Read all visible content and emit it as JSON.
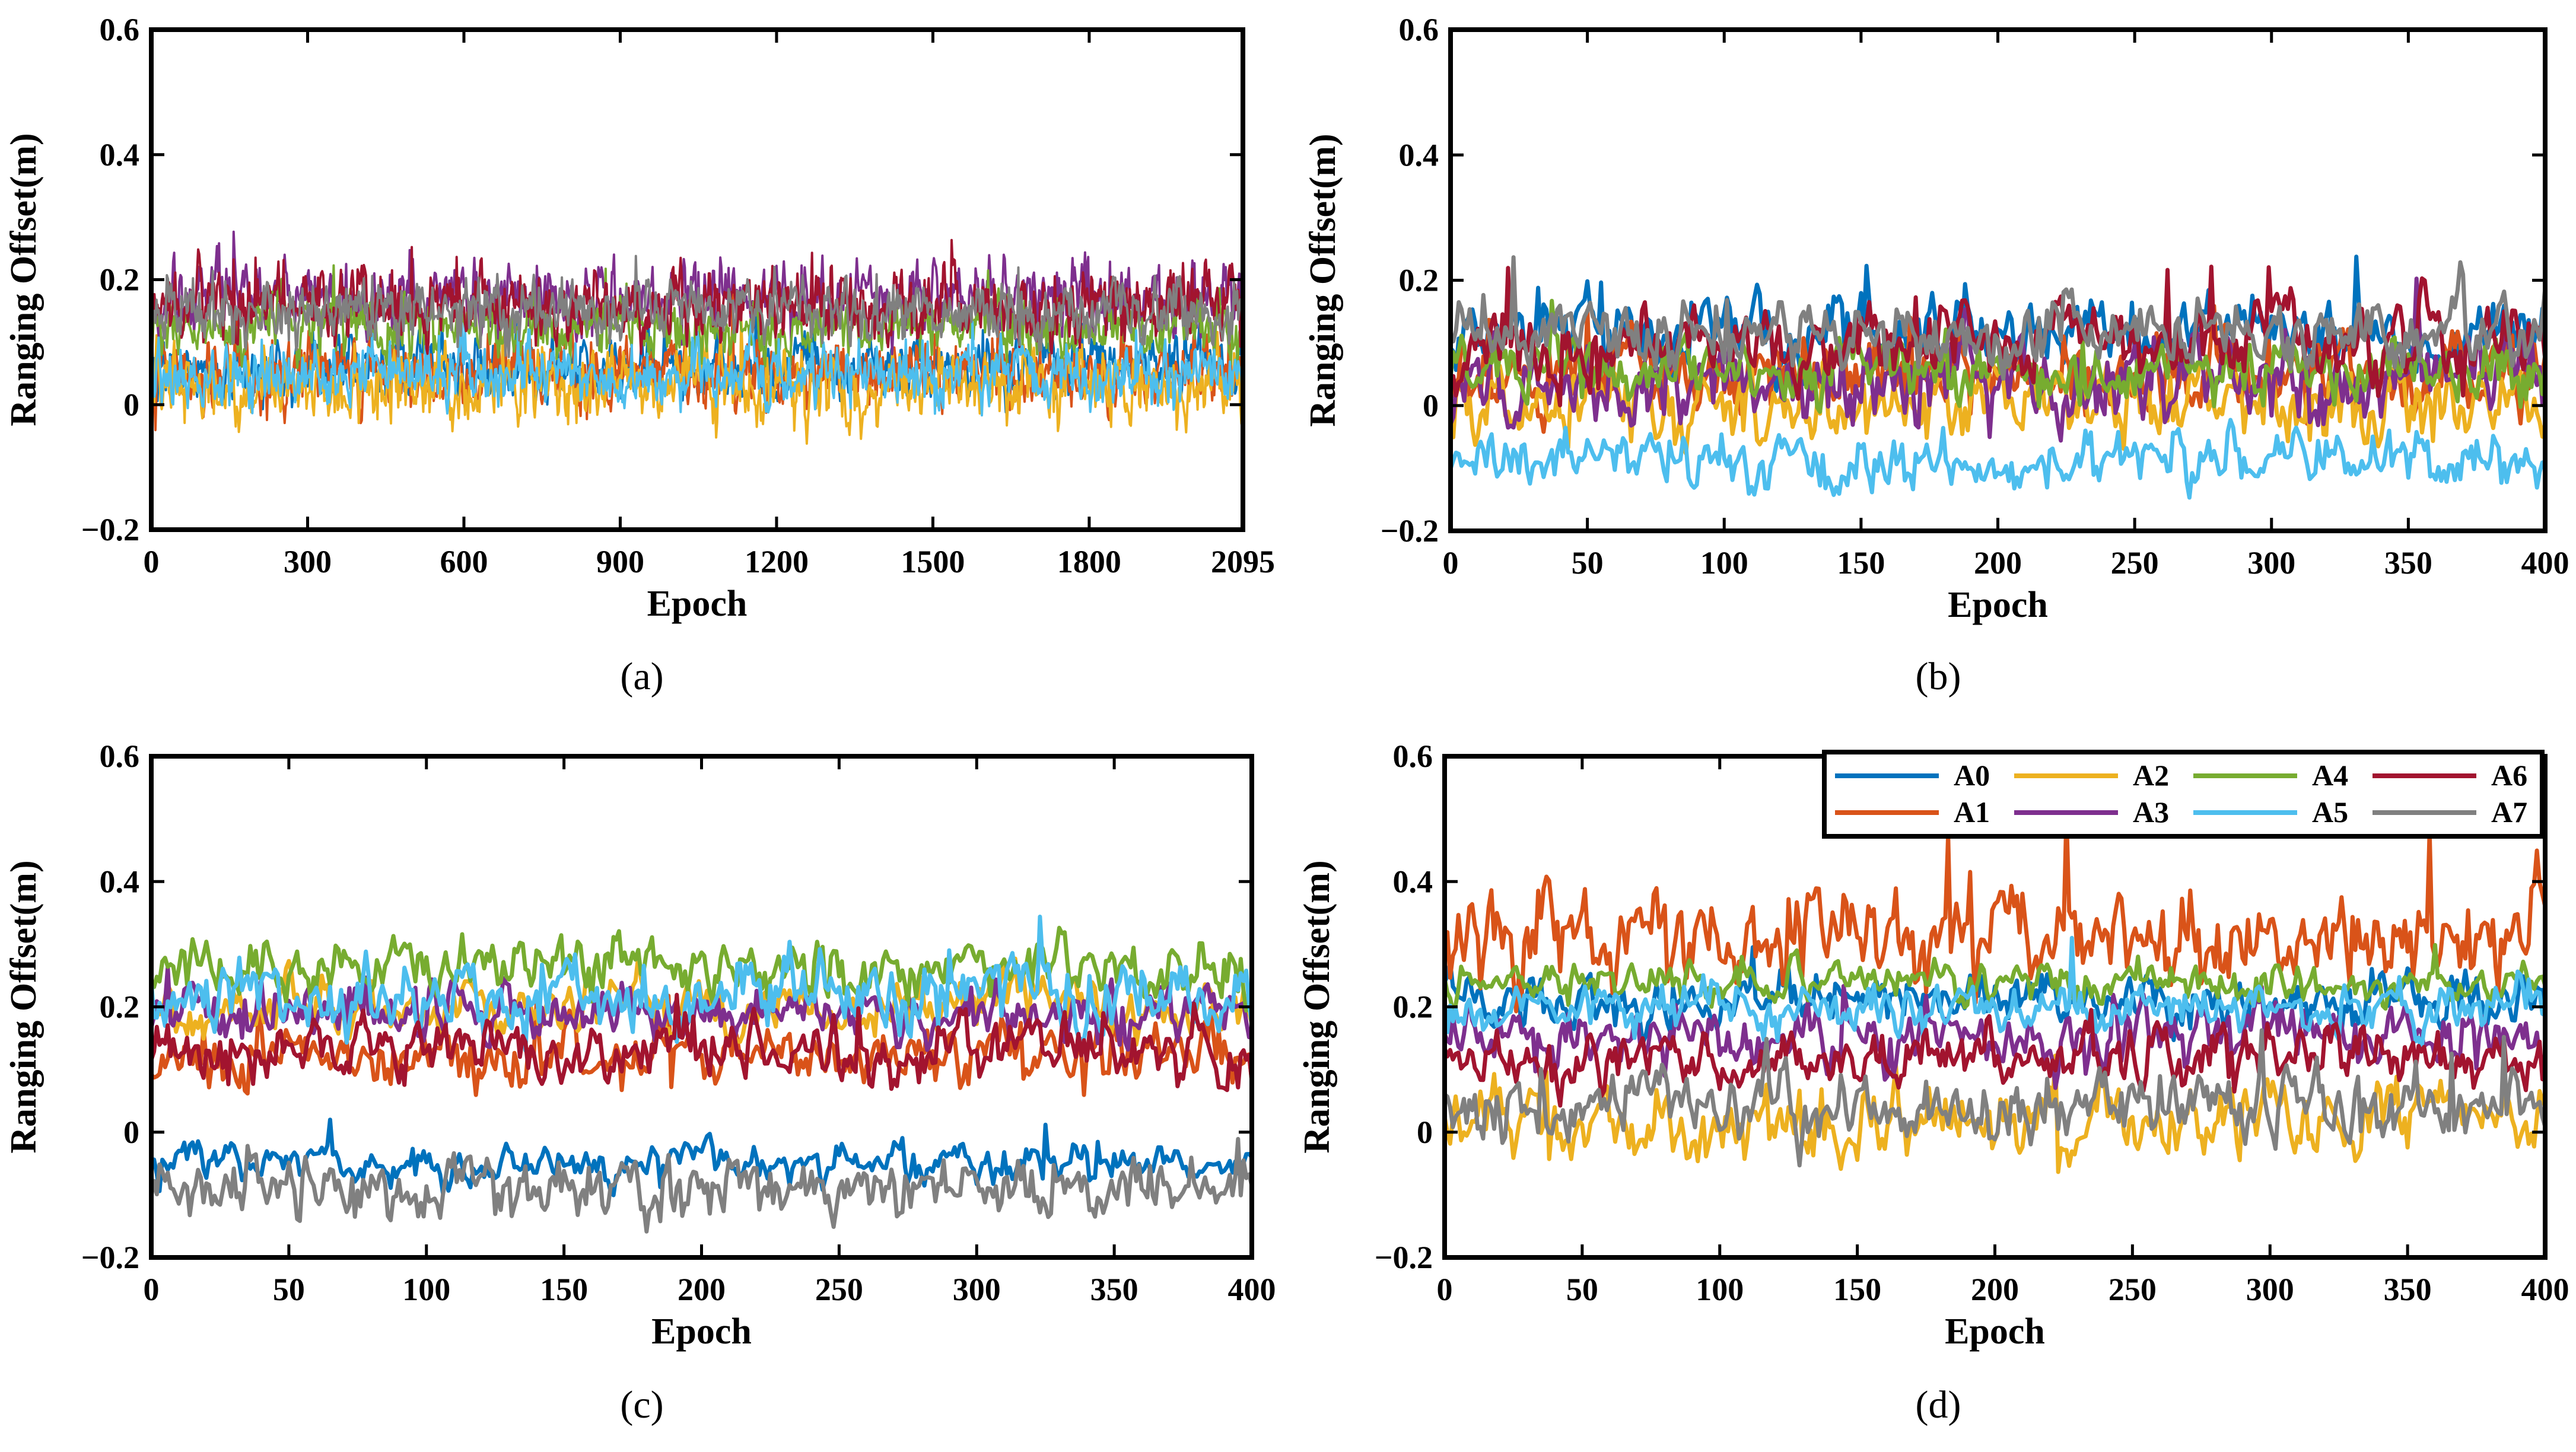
{
  "chart_data": [
    {
      "id": "a",
      "type": "line",
      "subfigure_label": "(a)",
      "xlabel": "Epoch",
      "ylabel": "Ranging Offset(m)",
      "xlim": [
        0,
        2095
      ],
      "ylim": [
        -0.2,
        0.6
      ],
      "xticks": [
        0,
        300,
        600,
        900,
        1200,
        1500,
        1800,
        2095
      ],
      "xtick_labels": [
        "0",
        "300",
        "600",
        "900",
        "1200",
        "1500",
        "1800",
        "2095"
      ],
      "yticks": [
        -0.2,
        0,
        0.2,
        0.4,
        0.6
      ],
      "ytick_labels": [
        "−0.2",
        "0",
        "0.2",
        "0.4",
        "0.6"
      ],
      "n_points": 2095,
      "series": [
        {
          "name": "A0",
          "mean": 0.06,
          "noise": 0.03
        },
        {
          "name": "A1",
          "mean": 0.05,
          "noise": 0.035
        },
        {
          "name": "A2",
          "mean": 0.03,
          "noise": 0.035
        },
        {
          "name": "A3",
          "mean": 0.17,
          "noise": 0.035
        },
        {
          "name": "A4",
          "mean": 0.12,
          "noise": 0.03
        },
        {
          "name": "A5",
          "mean": 0.05,
          "noise": 0.03
        },
        {
          "name": "A6",
          "mean": 0.16,
          "noise": 0.035
        },
        {
          "name": "A7",
          "mean": 0.15,
          "noise": 0.03
        }
      ]
    },
    {
      "id": "b",
      "type": "line",
      "subfigure_label": "(b)",
      "xlabel": "Epoch",
      "ylabel": "Ranging Offset(m)",
      "xlim": [
        0,
        400
      ],
      "ylim": [
        -0.2,
        0.6
      ],
      "xticks": [
        0,
        50,
        100,
        150,
        200,
        250,
        300,
        350,
        400
      ],
      "xtick_labels": [
        "0",
        "50",
        "100",
        "150",
        "200",
        "250",
        "300",
        "350",
        "400"
      ],
      "yticks": [
        -0.2,
        0,
        0.2,
        0.4,
        0.6
      ],
      "ytick_labels": [
        "−0.2",
        "0",
        "0.2",
        "0.4",
        "0.6"
      ],
      "n_points": 400,
      "series": [
        {
          "name": "A0",
          "mean": 0.12,
          "noise": 0.035
        },
        {
          "name": "A1",
          "mean": 0.05,
          "noise": 0.04
        },
        {
          "name": "A2",
          "mean": 0.0,
          "noise": 0.04
        },
        {
          "name": "A3",
          "mean": 0.04,
          "noise": 0.04
        },
        {
          "name": "A4",
          "mean": 0.06,
          "noise": 0.03
        },
        {
          "name": "A5",
          "mean": -0.09,
          "noise": 0.03
        },
        {
          "name": "A6",
          "mean": 0.1,
          "noise": 0.04
        },
        {
          "name": "A7",
          "mean": 0.11,
          "noise": 0.035
        }
      ]
    },
    {
      "id": "c",
      "type": "line",
      "subfigure_label": "(c)",
      "xlabel": "Epoch",
      "ylabel": "Ranging Offset(m)",
      "xlim": [
        0,
        400
      ],
      "ylim": [
        -0.2,
        0.6
      ],
      "xticks": [
        0,
        50,
        100,
        150,
        200,
        250,
        300,
        350,
        400
      ],
      "xtick_labels": [
        "0",
        "50",
        "100",
        "150",
        "200",
        "250",
        "300",
        "350",
        "400"
      ],
      "yticks": [
        -0.2,
        0,
        0.2,
        0.4,
        0.6
      ],
      "ytick_labels": [
        "−0.2",
        "0",
        "0.2",
        "0.4",
        "0.6"
      ],
      "n_points": 400,
      "series": [
        {
          "name": "A0",
          "mean": -0.05,
          "noise": 0.02
        },
        {
          "name": "A1",
          "mean": 0.12,
          "noise": 0.03
        },
        {
          "name": "A2",
          "mean": 0.2,
          "noise": 0.03
        },
        {
          "name": "A3",
          "mean": 0.19,
          "noise": 0.03
        },
        {
          "name": "A4",
          "mean": 0.26,
          "noise": 0.03
        },
        {
          "name": "A5",
          "mean": 0.22,
          "noise": 0.035
        },
        {
          "name": "A6",
          "mean": 0.13,
          "noise": 0.03
        },
        {
          "name": "A7",
          "mean": -0.09,
          "noise": 0.03
        }
      ]
    },
    {
      "id": "d",
      "type": "line",
      "subfigure_label": "(d)",
      "xlabel": "Epoch",
      "ylabel": "Ranging Offset(m)",
      "xlim": [
        0,
        400
      ],
      "ylim": [
        -0.2,
        0.6
      ],
      "xticks": [
        0,
        50,
        100,
        150,
        200,
        250,
        300,
        350,
        400
      ],
      "xtick_labels": [
        "0",
        "50",
        "100",
        "150",
        "200",
        "250",
        "300",
        "350",
        "400"
      ],
      "yticks": [
        -0.2,
        0,
        0.2,
        0.4,
        0.6
      ],
      "ytick_labels": [
        "−0.2",
        "0",
        "0.2",
        "0.4",
        "0.6"
      ],
      "n_points": 400,
      "legend_position": "top-right",
      "series": [
        {
          "name": "A0",
          "mean": 0.21,
          "noise": 0.025
        },
        {
          "name": "A1",
          "mean": 0.31,
          "noise": 0.05
        },
        {
          "name": "A2",
          "mean": 0.02,
          "noise": 0.035
        },
        {
          "name": "A3",
          "mean": 0.15,
          "noise": 0.03
        },
        {
          "name": "A4",
          "mean": 0.24,
          "noise": 0.02
        },
        {
          "name": "A5",
          "mean": 0.2,
          "noise": 0.025
        },
        {
          "name": "A6",
          "mean": 0.12,
          "noise": 0.03
        },
        {
          "name": "A7",
          "mean": 0.04,
          "noise": 0.035
        }
      ]
    }
  ],
  "legend": {
    "entries": [
      {
        "name": "A0",
        "color": "#0072BD"
      },
      {
        "name": "A1",
        "color": "#D95319"
      },
      {
        "name": "A2",
        "color": "#EDB120"
      },
      {
        "name": "A3",
        "color": "#7E2F8E"
      },
      {
        "name": "A4",
        "color": "#77AC30"
      },
      {
        "name": "A5",
        "color": "#4DBEEE"
      },
      {
        "name": "A6",
        "color": "#A2142F"
      },
      {
        "name": "A7",
        "color": "#808080"
      }
    ]
  }
}
